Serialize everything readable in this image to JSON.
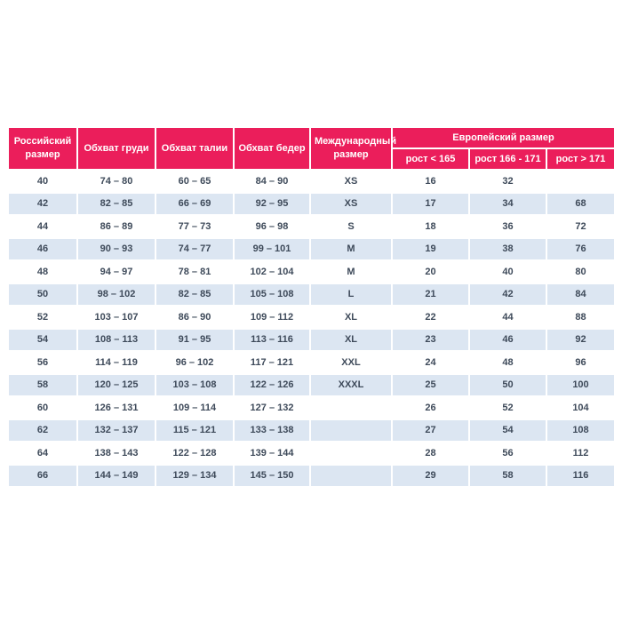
{
  "chart_data": {
    "type": "table",
    "title": "",
    "header": {
      "russian_size": "Российский размер",
      "chest": "Обхват груди",
      "waist": "Обхват талии",
      "hips": "Обхват бедер",
      "international_size": "Международный размер",
      "european_size": "Европейский размер",
      "height_lt_165": "рост < 165",
      "height_166_171": "рост 166 - 171",
      "height_gt_171": "рост > 171"
    },
    "column_keys": [
      "russian-size",
      "chest",
      "waist",
      "hips",
      "international-size",
      "height-lt-165",
      "height-166-171",
      "height-gt-171"
    ],
    "rows": [
      [
        "40",
        "74 – 80",
        "60 – 65",
        "84 – 90",
        "XS",
        "16",
        "32",
        ""
      ],
      [
        "42",
        "82 – 85",
        "66 – 69",
        "92 – 95",
        "XS",
        "17",
        "34",
        "68"
      ],
      [
        "44",
        "86 – 89",
        "77 – 73",
        "96 – 98",
        "S",
        "18",
        "36",
        "72"
      ],
      [
        "46",
        "90 – 93",
        "74 – 77",
        "99 – 101",
        "M",
        "19",
        "38",
        "76"
      ],
      [
        "48",
        "94 – 97",
        "78 – 81",
        "102 – 104",
        "M",
        "20",
        "40",
        "80"
      ],
      [
        "50",
        "98 – 102",
        "82 – 85",
        "105 – 108",
        "L",
        "21",
        "42",
        "84"
      ],
      [
        "52",
        "103 – 107",
        "86 – 90",
        "109 – 112",
        "XL",
        "22",
        "44",
        "88"
      ],
      [
        "54",
        "108 – 113",
        "91 – 95",
        "113 – 116",
        "XL",
        "23",
        "46",
        "92"
      ],
      [
        "56",
        "114 – 119",
        "96 – 102",
        "117 – 121",
        "XXL",
        "24",
        "48",
        "96"
      ],
      [
        "58",
        "120 – 125",
        "103 – 108",
        "122 – 126",
        "XXXL",
        "25",
        "50",
        "100"
      ],
      [
        "60",
        "126 – 131",
        "109 – 114",
        "127 – 132",
        "",
        "26",
        "52",
        "104"
      ],
      [
        "62",
        "132 – 137",
        "115 – 121",
        "133 – 138",
        "",
        "27",
        "54",
        "108"
      ],
      [
        "64",
        "138 – 143",
        "122 – 128",
        "139 – 144",
        "",
        "28",
        "56",
        "112"
      ],
      [
        "66",
        "144 – 149",
        "129 – 134",
        "145 – 150",
        "",
        "29",
        "58",
        "116"
      ]
    ],
    "layout_hints": {
      "stripe_pattern": "even rows white, odd rows light blue (0-based)",
      "header_rows": 2,
      "european_size_spans": [
        "height_lt_165",
        "height_166_171",
        "height_gt_171"
      ]
    }
  },
  "colors": {
    "header_bg": "#eb1e5b",
    "stripe_bg": "#dce6f2",
    "row_bg": "#ffffff",
    "body_text": "#3e4a5a",
    "header_text": "#ffffff"
  }
}
